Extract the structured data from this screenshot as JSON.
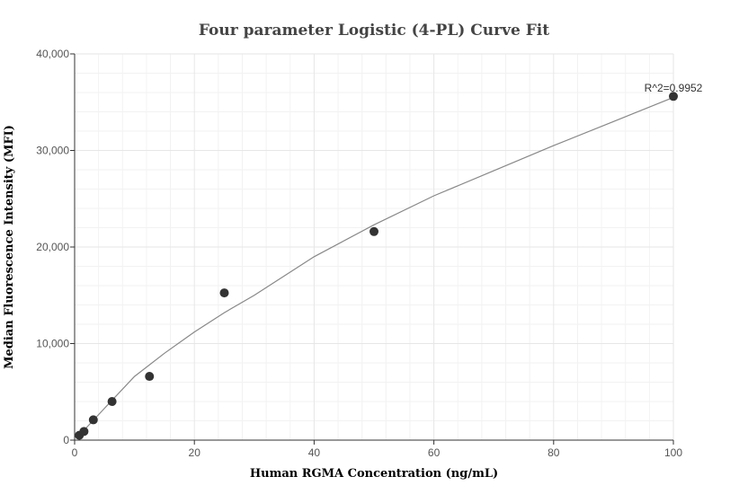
{
  "chart_data": {
    "type": "scatter",
    "title": "Four parameter Logistic (4-PL) Curve Fit",
    "xlabel": "Human RGMA Concentration (ng/mL)",
    "ylabel": "Median Fluorescence Intensity (MFI)",
    "xlim": [
      0,
      100
    ],
    "ylim": [
      0,
      40000
    ],
    "x_ticks": [
      0,
      20,
      40,
      60,
      80,
      100
    ],
    "x_tick_labels": [
      "0",
      "20",
      "40",
      "60",
      "80",
      "100"
    ],
    "y_ticks": [
      0,
      10000,
      20000,
      30000,
      40000
    ],
    "y_tick_labels": [
      "0",
      "10,000",
      "20,000",
      "30,000",
      "40,000"
    ],
    "grid": true,
    "points": [
      {
        "x": 0.78,
        "y": 500
      },
      {
        "x": 1.56,
        "y": 900
      },
      {
        "x": 3.125,
        "y": 2100
      },
      {
        "x": 6.25,
        "y": 4000
      },
      {
        "x": 12.5,
        "y": 6600
      },
      {
        "x": 25,
        "y": 15250
      },
      {
        "x": 50,
        "y": 21600
      },
      {
        "x": 100,
        "y": 35600
      }
    ],
    "fit_curve": [
      {
        "x": 0.78,
        "y": 500
      },
      {
        "x": 5,
        "y": 3300
      },
      {
        "x": 10,
        "y": 6600
      },
      {
        "x": 15,
        "y": 9000
      },
      {
        "x": 20,
        "y": 11200
      },
      {
        "x": 25,
        "y": 13200
      },
      {
        "x": 30,
        "y": 15000
      },
      {
        "x": 40,
        "y": 19000
      },
      {
        "x": 50,
        "y": 22300
      },
      {
        "x": 60,
        "y": 25300
      },
      {
        "x": 70,
        "y": 27900
      },
      {
        "x": 80,
        "y": 30500
      },
      {
        "x": 90,
        "y": 33000
      },
      {
        "x": 100,
        "y": 35500
      }
    ],
    "annotation": "R^2=0.9952",
    "colors": {
      "points": "#333333",
      "curve": "#888888",
      "grid": "#e6e6e6",
      "axis": "#333333"
    }
  }
}
